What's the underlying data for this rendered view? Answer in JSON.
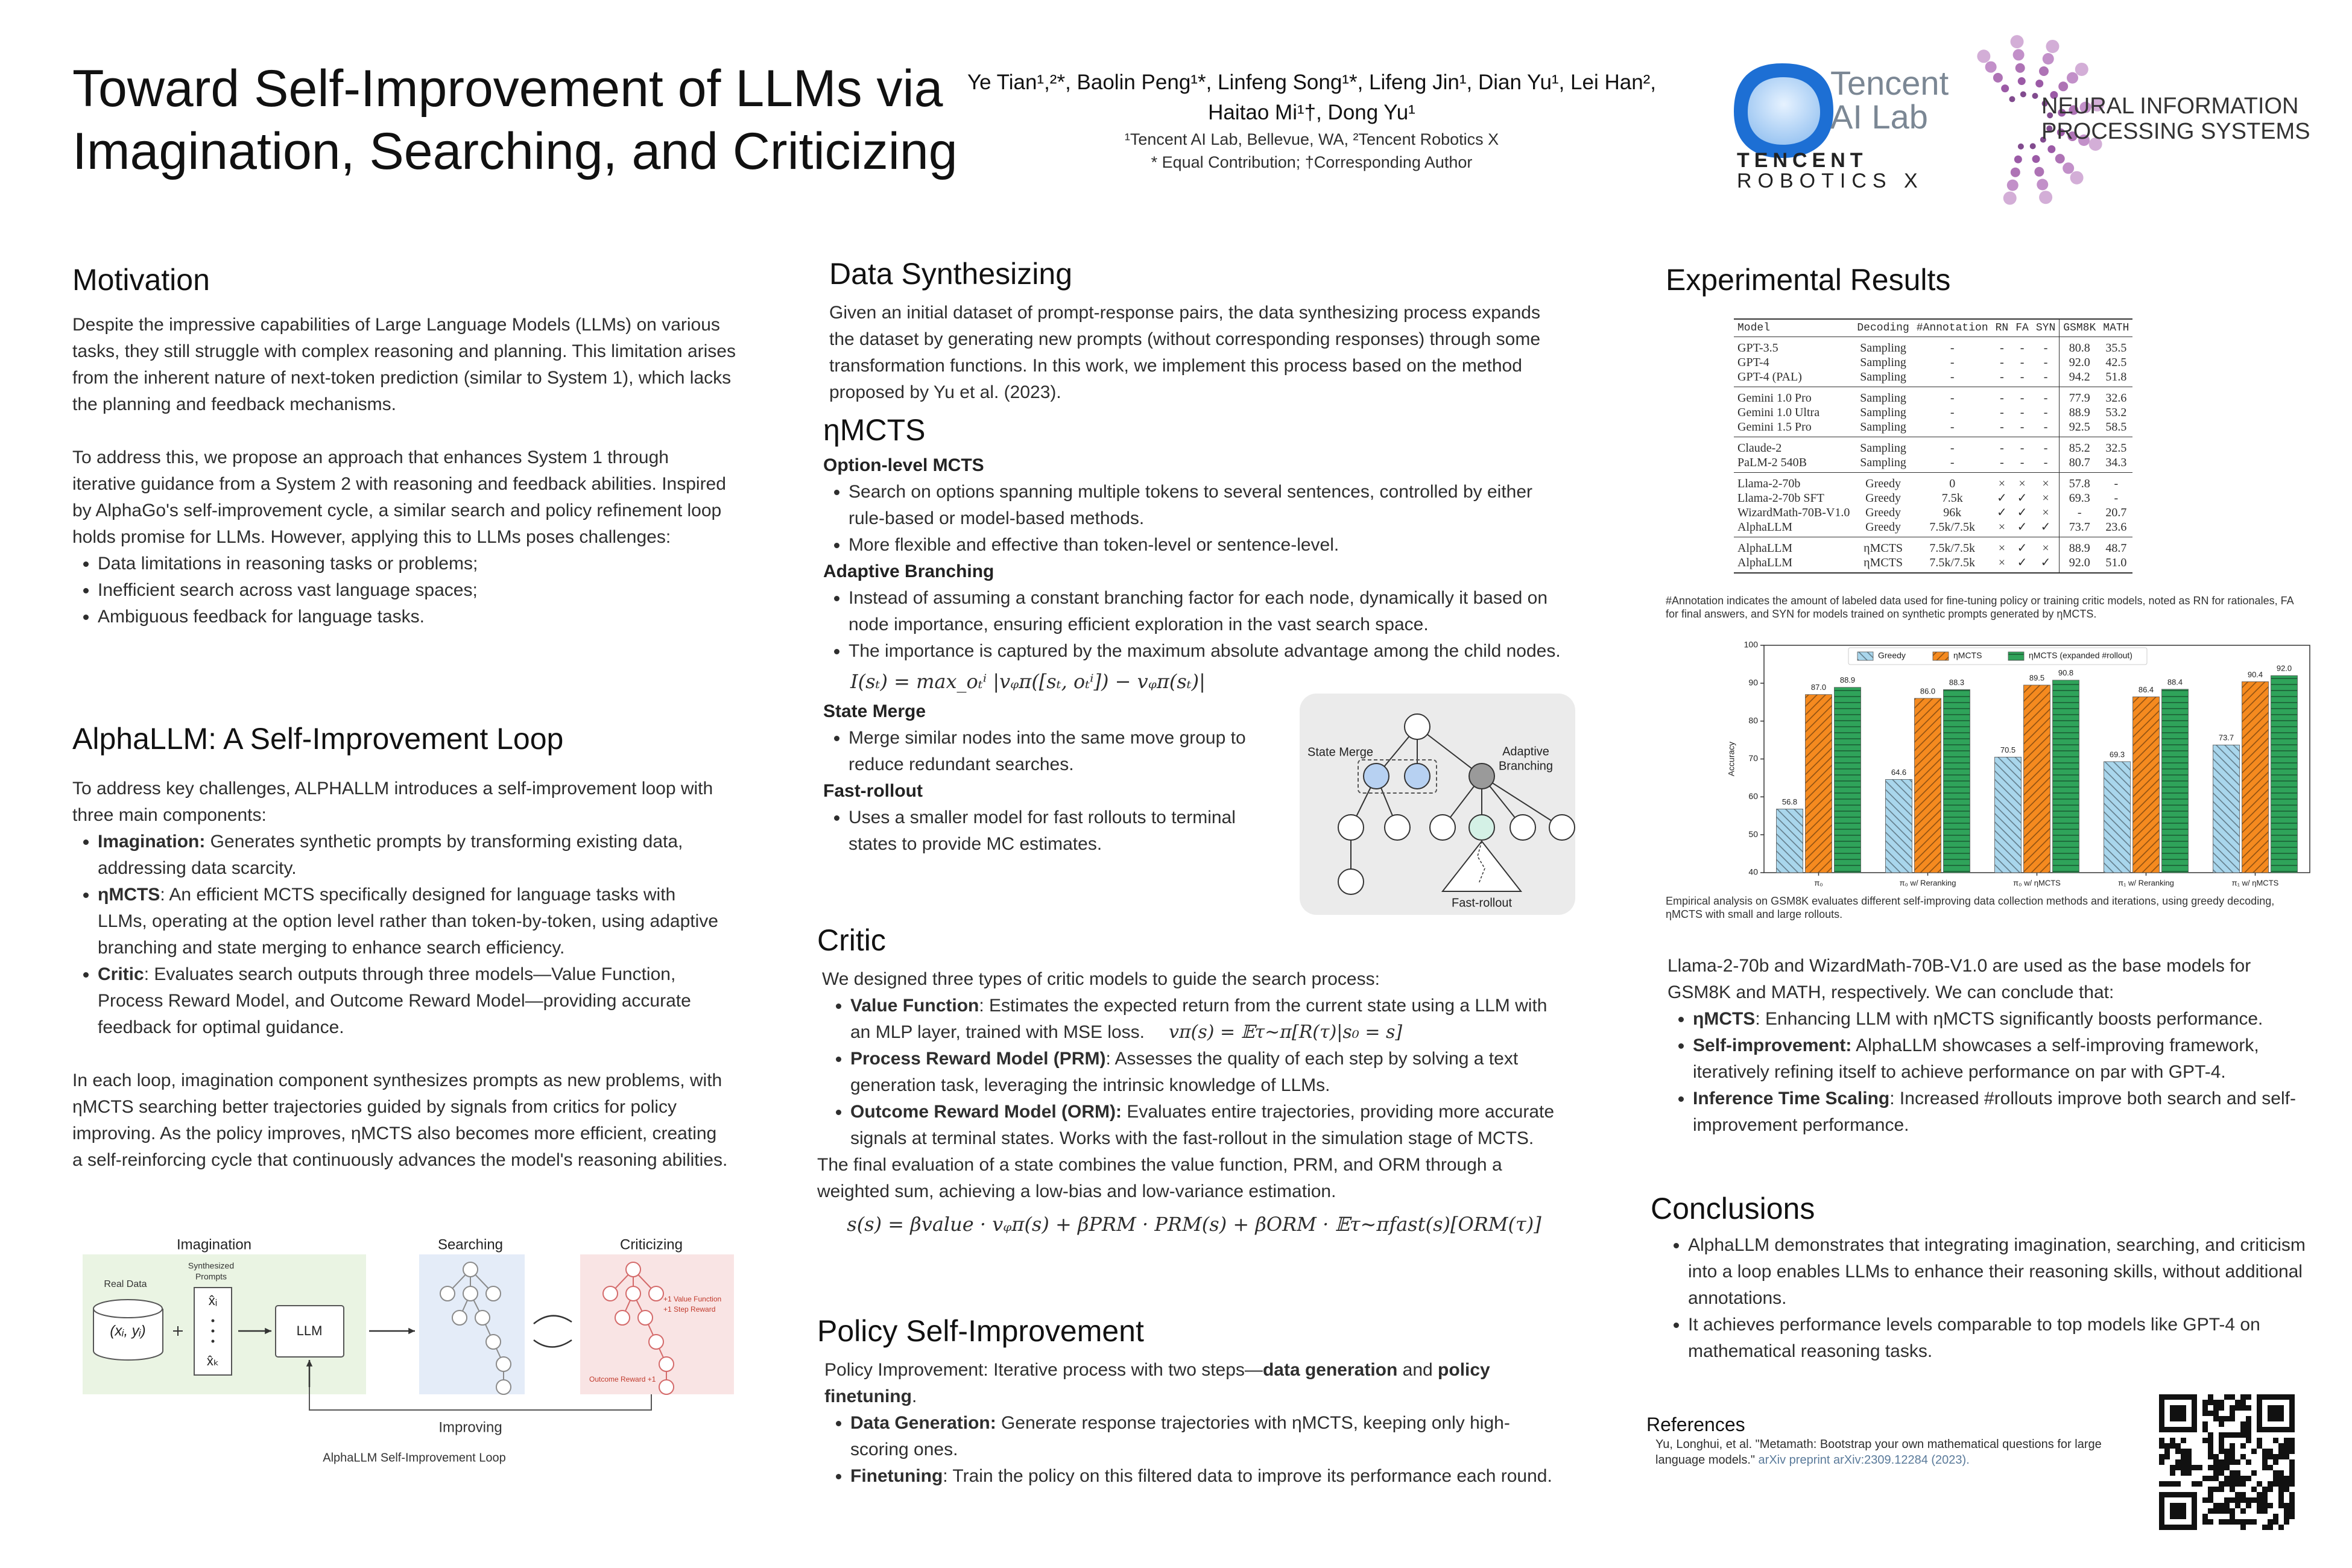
{
  "header": {
    "title": [
      "Toward Self-Improvement of LLMs via",
      "Imagination, Searching, and Criticizing"
    ],
    "authors": [
      "Ye Tian¹,²*, Baolin Peng¹*, Linfeng Song¹*, Lifeng Jin¹, Dian Yu¹, Lei Han²,",
      "Haitao Mi¹†, Dong Yu¹"
    ],
    "affiliations": "¹Tencent AI Lab, Bellevue, WA, ²Tencent Robotics X",
    "note": "* Equal Contribution; †Corresponding Author",
    "logos": {
      "tencent": [
        "Tencent",
        "AI Lab"
      ],
      "robotics": [
        "TENCENT",
        "ROBOTICS X"
      ],
      "neurips": [
        "NEURAL INFORMATION",
        "PROCESSING SYSTEMS"
      ]
    }
  },
  "motivation": {
    "heading": "Motivation",
    "paragraphs": [
      "Despite the impressive capabilities of Large Language Models (LLMs) on various tasks, they still struggle with complex reasoning and planning. This limitation arises from the inherent nature of next-token prediction (similar to System 1), which lacks the planning and feedback mechanisms.",
      "To address this, we propose an approach that enhances System 1 through iterative guidance from a System 2 with reasoning and feedback abilities. Inspired by AlphaGo's self-improvement cycle, a similar search and policy refinement loop holds promise for LLMs. However, applying this to LLMs poses challenges:"
    ],
    "bullets": [
      "Data limitations in reasoning tasks or problems;",
      "Inefficient search across vast language spaces;",
      "Ambiguous feedback for language tasks."
    ]
  },
  "alphallm": {
    "heading": "AlphaLLM: A Self-Improvement Loop",
    "intro": "To address key challenges, ALPHALLM introduces a self-improvement loop with three main components:",
    "bullets": [
      {
        "term": "Imagination:",
        "text": " Generates synthetic prompts by transforming existing data, addressing data scarcity."
      },
      {
        "term": "ηMCTS",
        "text": ": An efficient MCTS specifically designed for language tasks with LLMs, operating at the option level rather than token-by-token, using adaptive branching and state merging to enhance search efficiency."
      },
      {
        "term": "Critic",
        "text": ": Evaluates search outputs through three models—Value Function, Process Reward Model, and Outcome Reward Model—providing accurate feedback for optimal guidance."
      }
    ],
    "closing": "In each loop, imagination component synthesizes prompts as new problems, with ηMCTS searching better trajectories guided by signals from critics for policy improving. As the policy improves, ηMCTS also becomes more efficient, creating a self-reinforcing cycle that continuously advances the model's reasoning abilities."
  },
  "figure_loop": {
    "imagination": "Imagination",
    "searching": "Searching",
    "criticizing": "Criticizing",
    "real_data": "Real Data",
    "data_point": "(xᵢ, yᵢ)",
    "synth": [
      "Synthesized",
      "Prompts"
    ],
    "prompts": [
      "x̂ᵢ",
      "x̂ₖ"
    ],
    "llm": "LLM",
    "rewards": [
      "+1 Value Function",
      "+1 Step Reward"
    ],
    "outcome": "Outcome Reward +1",
    "improving": "Improving",
    "caption": "AlphaLLM Self-Improvement Loop"
  },
  "data_synthesizing": {
    "heading": "Data Synthesizing",
    "text": "Given an initial dataset of prompt-response pairs, the data synthesizing process expands the dataset by generating new prompts (without corresponding responses) through some transformation functions. In this work, we implement this process based on the method proposed by Yu et al. (2023)."
  },
  "mcts": {
    "heading": "ηMCTS",
    "option": {
      "heading": "Option-level MCTS",
      "bullets": [
        "Search on options spanning multiple tokens to several sentences, controlled by either rule-based or model-based methods.",
        "More flexible and effective than token-level or sentence-level."
      ]
    },
    "branching": {
      "heading": "Adaptive Branching",
      "bullets": [
        "Instead of assuming a constant branching factor for each node, dynamically it based on node importance, ensuring efficient exploration in the vast search space.",
        "The importance is captured  by the maximum absolute advantage among the child nodes."
      ],
      "formula": "I(sₜ) = max_oₜⁱ |vᵩπ([sₜ, oₜⁱ]) − vᵩπ(sₜ)|"
    },
    "merge": {
      "heading": "State Merge",
      "bullets": [
        "Merge similar nodes into the same move group to reduce redundant searches."
      ]
    },
    "rollout": {
      "heading": "Fast-rollout",
      "bullets": [
        "Uses a smaller model for fast rollouts to terminal states to provide MC estimates."
      ]
    },
    "figure": {
      "state_merge": "State Merge",
      "adaptive": [
        "Adaptive",
        "Branching"
      ],
      "rollout": "Fast-rollout"
    }
  },
  "critic": {
    "heading": "Critic",
    "intro": "We designed three types of critic models to guide the search process:",
    "bullets": [
      {
        "term": "Value Function",
        "text": ": Estimates the expected return from the current state using a LLM with an MLP layer, trained with MSE loss.",
        "formula": "vπ(s) = 𝔼τ∼π[R(τ)|s₀ = s]"
      },
      {
        "term": "Process Reward Model (PRM)",
        "text": ": Assesses the quality of each step by solving a text generation task, leveraging the intrinsic knowledge of LLMs."
      },
      {
        "term": "Outcome Reward Model (ORM):",
        "text": " Evaluates entire trajectories, providing more accurate signals at terminal states. Works with the fast-rollout in the simulation stage of MCTS."
      }
    ],
    "closing": "The final evaluation of a state combines the value function, PRM, and ORM through a weighted sum, achieving a low-bias and low-variance estimation.",
    "formula": "s(s) = βvalue · vᵩπ(s) + βPRM · PRM(s) + βORM · 𝔼τ∼πfast(s)[ORM(τ)]"
  },
  "policy": {
    "heading": "Policy Self-Improvement",
    "intro": [
      "Policy Improvement: Iterative process with two steps—",
      "data generation",
      " and ",
      "policy finetuning",
      "."
    ],
    "bullets": [
      {
        "term": "Data Generation:",
        "text": " Generate response trajectories with ηMCTS, keeping only high-scoring ones."
      },
      {
        "term": "Finetuning",
        "text": ": Train the policy on this filtered data to improve its performance each round."
      }
    ]
  },
  "results": {
    "heading": "Experimental Results",
    "table": {
      "columns": [
        "Model",
        "Decoding",
        "#Annotation",
        "RN",
        "FA",
        "SYN",
        "GSM8K",
        "MATH"
      ],
      "groups": [
        [
          [
            "GPT-3.5",
            "Sampling",
            "-",
            "-",
            "-",
            "-",
            "80.8",
            "35.5"
          ],
          [
            "GPT-4",
            "Sampling",
            "-",
            "-",
            "-",
            "-",
            "92.0",
            "42.5"
          ],
          [
            "GPT-4 (PAL)",
            "Sampling",
            "-",
            "-",
            "-",
            "-",
            "94.2",
            "51.8"
          ]
        ],
        [
          [
            "Gemini 1.0 Pro",
            "Sampling",
            "-",
            "-",
            "-",
            "-",
            "77.9",
            "32.6"
          ],
          [
            "Gemini 1.0 Ultra",
            "Sampling",
            "-",
            "-",
            "-",
            "-",
            "88.9",
            "53.2"
          ],
          [
            "Gemini 1.5 Pro",
            "Sampling",
            "-",
            "-",
            "-",
            "-",
            "92.5",
            "58.5"
          ]
        ],
        [
          [
            "Claude-2",
            "Sampling",
            "-",
            "-",
            "-",
            "-",
            "85.2",
            "32.5"
          ],
          [
            "PaLM-2 540B",
            "Sampling",
            "-",
            "-",
            "-",
            "-",
            "80.7",
            "34.3"
          ]
        ],
        [
          [
            "Llama-2-70b",
            "Greedy",
            "0",
            "×",
            "×",
            "×",
            "57.8",
            "-"
          ],
          [
            "Llama-2-70b SFT",
            "Greedy",
            "7.5k",
            "✓",
            "✓",
            "×",
            "69.3",
            "-"
          ],
          [
            "WizardMath-70B-V1.0",
            "Greedy",
            "96k",
            "✓",
            "✓",
            "×",
            "-",
            "20.7"
          ],
          [
            "AlphaLLM",
            "Greedy",
            "7.5k/7.5k",
            "×",
            "✓",
            "✓",
            "73.7",
            "23.6"
          ]
        ],
        [
          [
            "AlphaLLM",
            "ηMCTS",
            "7.5k/7.5k",
            "×",
            "✓",
            "×",
            "88.9",
            "48.7"
          ],
          [
            "AlphaLLM",
            "ηMCTS",
            "7.5k/7.5k",
            "×",
            "✓",
            "✓",
            "92.0",
            "51.0"
          ]
        ]
      ]
    },
    "table_caption": "#Annotation indicates the amount of labeled data used for fine-tuning policy or training critic models, noted as RN for rationales, FA for final answers, and SYN for models trained on synthetic prompts generated by ηMCTS.",
    "chart_caption": "Empirical analysis on GSM8K evaluates different self-improving data collection methods and iterations, using greedy decoding, ηMCTS with small and large rollouts.",
    "summary": "Llama-2-70b and WizardMath-70B-V1.0 are used as the base models for GSM8K and MATH, respectively. We can conclude that:",
    "bullets": [
      {
        "term": "ηMCTS",
        "text": ": Enhancing LLM with ηMCTS significantly boosts performance."
      },
      {
        "term": "Self-improvement:",
        "text": " AlphaLLM showcases a self-improving framework, iteratively refining itself to achieve performance on par with GPT-4."
      },
      {
        "term": "Inference Time Scaling",
        "text": ": Increased #rollouts improve both search and self-improvement performance."
      }
    ]
  },
  "chart_data": {
    "type": "bar",
    "ylabel": "Accuracy",
    "categories": [
      "π₀",
      "π₀ w/ Reranking",
      "π₀ w/ ηMCTS",
      "π₁ w/ Reranking",
      "π₁ w/ ηMCTS"
    ],
    "series": [
      {
        "name": "Greedy",
        "color": "#a9d6ec",
        "values": [
          56.8,
          64.6,
          70.5,
          69.3,
          73.7
        ],
        "value_labels": [
          "56.8",
          "64.6",
          "70.5",
          "69.3",
          "73.7"
        ]
      },
      {
        "name": "ηMCTS",
        "color": "#f58a1f",
        "values": [
          87.0,
          86.0,
          89.5,
          86.4,
          90.4
        ],
        "value_labels": [
          "87.0",
          "86.0",
          "89.5",
          "86.4",
          "90.4"
        ]
      },
      {
        "name": "ηMCTS (expanded #rollout)",
        "color": "#2fa35a",
        "values": [
          88.9,
          88.3,
          90.8,
          88.4,
          92.0
        ],
        "value_labels": [
          "88.9",
          "88.3",
          "90.8",
          "88.4",
          "92.0"
        ]
      }
    ],
    "ylim": [
      40,
      100
    ],
    "yticks": [
      40,
      50,
      60,
      70,
      80,
      90,
      100
    ],
    "grid": false,
    "legend": "top"
  },
  "conclusions": {
    "heading": "Conclusions",
    "bullets": [
      "AlphaLLM demonstrates that integrating imagination, searching, and criticism into a loop enables LLMs to enhance their reasoning skills, without additional annotations.",
      "It achieves performance levels comparable to top models like GPT-4 on mathematical reasoning tasks."
    ]
  },
  "references": {
    "heading": "References",
    "entry": "Yu, Longhui, et al. \"Metamath: Bootstrap your own mathematical questions for large language models.\" ",
    "link": "arXiv preprint arXiv:2309.12284 (2023)."
  }
}
